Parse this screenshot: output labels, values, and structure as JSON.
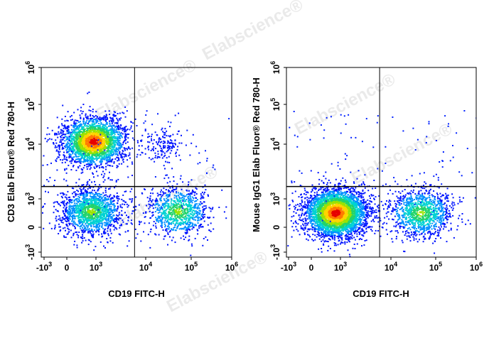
{
  "watermark": "Elabscience",
  "chart_data": [
    {
      "type": "scatter",
      "variant": "flow-cytometry-density",
      "xlabel": "CD19 FITC-H",
      "ylabel": "CD3 Elab Fluor® Red 780-H",
      "scale": "biexponential",
      "ticks": [
        "-10^3",
        "0",
        "10^3",
        "10^4",
        "10^5",
        "10^6"
      ],
      "gate": {
        "x": 6000,
        "y": 1700
      },
      "populations": [
        {
          "x": 800,
          "y": 12000,
          "points": 2600,
          "peak": "red"
        },
        {
          "x": 700,
          "y": 400,
          "points": 1500,
          "peak": "cyan"
        },
        {
          "x": 50000,
          "y": 400,
          "points": 900,
          "peak": "cyan"
        },
        {
          "x": 25000,
          "y": 10000,
          "points": 150,
          "peak": "blue"
        }
      ]
    },
    {
      "type": "scatter",
      "variant": "flow-cytometry-density",
      "xlabel": "CD19 FITC-H",
      "ylabel": "Mouse IgG1 Elab Fluor® Red 780-H",
      "scale": "biexponential",
      "ticks": [
        "-10^3",
        "0",
        "10^3",
        "10^4",
        "10^5",
        "10^6"
      ],
      "gate": {
        "x": 6000,
        "y": 1700
      },
      "populations": [
        {
          "x": 700,
          "y": 350,
          "points": 3600,
          "peak": "red"
        },
        {
          "x": 45000,
          "y": 350,
          "points": 1100,
          "peak": "cyan"
        }
      ]
    }
  ]
}
